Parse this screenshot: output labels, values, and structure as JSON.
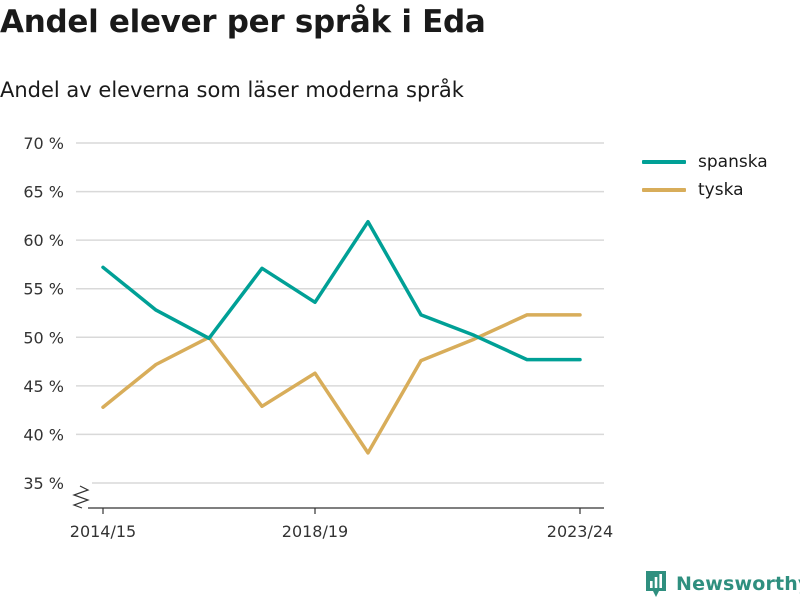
{
  "header": {
    "title": "Andel elever per språk i Eda",
    "subtitle": "Andel av eleverna som läser moderna språk"
  },
  "brand": {
    "label": "Newsworthy",
    "icon": "newsworthy-logo-icon"
  },
  "colors": {
    "spanska": "#00a096",
    "tyska": "#d8ad5a",
    "grid": "#d9d9d9",
    "axis": "#333333",
    "brand": "#2f8f7f"
  },
  "chart_data": {
    "type": "line",
    "title": "Andel elever per språk i Eda",
    "subtitle": "Andel av eleverna som läser moderna språk",
    "xlabel": "",
    "ylabel": "",
    "categories": [
      "2014/15",
      "2015/16",
      "2016/17",
      "2017/18",
      "2018/19",
      "2019/20",
      "2020/21",
      "2021/22",
      "2022/23",
      "2023/24"
    ],
    "x_tick_labels": [
      "2014/15",
      "2018/19",
      "2023/24"
    ],
    "y_tick_labels": [
      "35 %",
      "40 %",
      "45 %",
      "50 %",
      "55 %",
      "60 %",
      "65 %",
      "70 %"
    ],
    "y_ticks": [
      35,
      40,
      45,
      50,
      55,
      60,
      65,
      70
    ],
    "ylim": [
      32.5,
      70
    ],
    "y_axis_break": true,
    "grid": "horizontal",
    "legend_position": "right",
    "series": [
      {
        "name": "spanska",
        "color": "#00a096",
        "values": [
          57.2,
          52.8,
          49.9,
          57.1,
          53.6,
          61.9,
          52.3,
          50.2,
          47.7,
          47.7
        ]
      },
      {
        "name": "tyska",
        "color": "#d8ad5a",
        "values": [
          42.8,
          47.2,
          50.0,
          42.9,
          46.3,
          38.1,
          47.6,
          49.8,
          52.3,
          52.3
        ]
      }
    ]
  }
}
